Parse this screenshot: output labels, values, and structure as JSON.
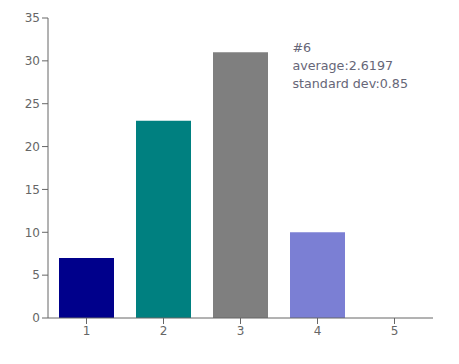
{
  "chart_data": {
    "type": "bar",
    "x": [
      1,
      2,
      3,
      4,
      5
    ],
    "values": [
      7,
      23,
      31,
      10,
      0
    ],
    "colors": [
      "#00008B",
      "#008080",
      "#7f7f7f",
      "#7B7FD4",
      "#FFFFFF"
    ],
    "xlim": [
      0.5,
      5.5
    ],
    "xticks": [
      1,
      2,
      3,
      4,
      5
    ],
    "ylim": [
      0,
      35
    ],
    "yticks": [
      0,
      5,
      10,
      15,
      20,
      25,
      30,
      35
    ],
    "grid": false,
    "annotation": "#6\naverage:2.6197\nstandard dev:0.85"
  }
}
